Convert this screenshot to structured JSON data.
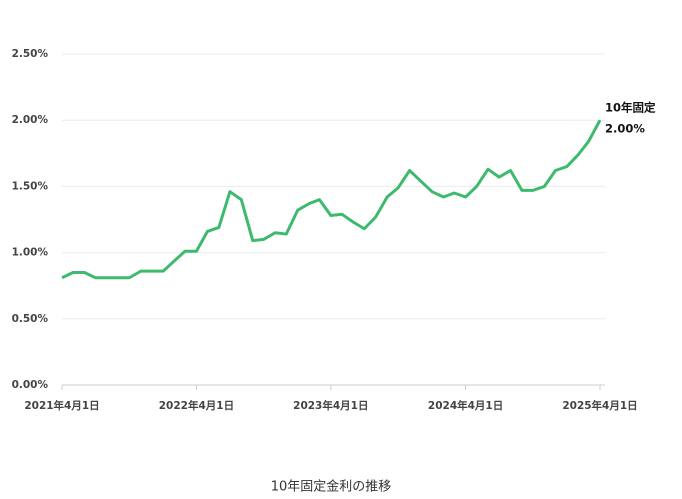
{
  "chart_data": {
    "type": "line",
    "title": "10年固定金利の推移",
    "x": [
      "2021-04-01",
      "2021-05-01",
      "2021-06-01",
      "2021-07-01",
      "2021-08-01",
      "2021-09-01",
      "2021-10-01",
      "2021-11-01",
      "2021-12-01",
      "2022-01-01",
      "2022-02-01",
      "2022-03-01",
      "2022-04-01",
      "2022-05-01",
      "2022-06-01",
      "2022-07-01",
      "2022-08-01",
      "2022-09-01",
      "2022-10-01",
      "2022-11-01",
      "2022-12-01",
      "2023-01-01",
      "2023-02-01",
      "2023-03-01",
      "2023-04-01",
      "2023-05-01",
      "2023-06-01",
      "2023-07-01",
      "2023-08-01",
      "2023-09-01",
      "2023-10-01",
      "2023-11-01",
      "2023-12-01",
      "2024-01-01",
      "2024-02-01",
      "2024-03-01",
      "2024-04-01",
      "2024-05-01",
      "2024-06-01",
      "2024-07-01",
      "2024-08-01",
      "2024-09-01",
      "2024-10-01",
      "2024-11-01",
      "2024-12-01",
      "2025-01-01",
      "2025-02-01",
      "2025-03-01",
      "2025-04-01"
    ],
    "series": [
      {
        "name": "10年固定",
        "color": "#3dba6e",
        "values": [
          0.81,
          0.85,
          0.85,
          0.81,
          0.81,
          0.81,
          0.81,
          0.86,
          0.86,
          0.86,
          0.94,
          1.01,
          1.01,
          1.16,
          1.19,
          1.46,
          1.4,
          1.09,
          1.1,
          1.15,
          1.14,
          1.32,
          1.37,
          1.4,
          1.28,
          1.29,
          1.23,
          1.18,
          1.27,
          1.42,
          1.49,
          1.62,
          1.54,
          1.46,
          1.42,
          1.45,
          1.42,
          1.5,
          1.63,
          1.57,
          1.62,
          1.47,
          1.47,
          1.5,
          1.62,
          1.65,
          1.74,
          1.84,
          2.0
        ],
        "value_labels": [
          null,
          null,
          null,
          null,
          null,
          null,
          null,
          null,
          null,
          null,
          null,
          null,
          null,
          null,
          null,
          null,
          null,
          null,
          null,
          null,
          null,
          null,
          null,
          null,
          null,
          null,
          null,
          null,
          null,
          null,
          null,
          null,
          null,
          null,
          null,
          null,
          null,
          null,
          null,
          null,
          null,
          null,
          null,
          null,
          null,
          null,
          null,
          null,
          "2.00%"
        ]
      }
    ],
    "ylim": [
      0,
      2.5
    ],
    "yticks": [
      {
        "value": 0,
        "label": "0.00%"
      },
      {
        "value": 0.5,
        "label": "0.50%"
      },
      {
        "value": 1,
        "label": "1.00%"
      },
      {
        "value": 1.5,
        "label": "1.50%"
      },
      {
        "value": 2,
        "label": "2.00%"
      },
      {
        "value": 2.5,
        "label": "2.50%"
      }
    ],
    "xlim": [
      "2021-04-01",
      "2025-04-01"
    ],
    "xticks": [
      {
        "value": "2021-04-01",
        "label": "2021年4月1日"
      },
      {
        "value": "2022-04-01",
        "label": "2022年4月1日"
      },
      {
        "value": "2023-04-01",
        "label": "2023年4月1日"
      },
      {
        "value": "2024-04-01",
        "label": "2024年4月1日"
      },
      {
        "value": "2025-04-01",
        "label": "2025年4月1日"
      }
    ],
    "grid": true
  }
}
